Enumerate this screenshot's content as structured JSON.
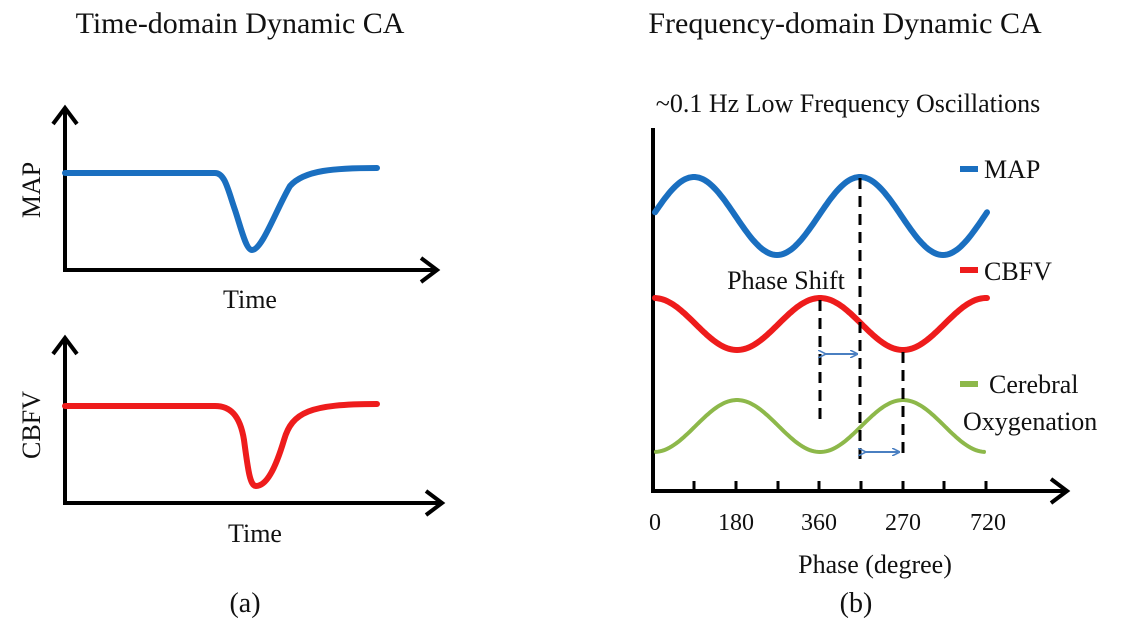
{
  "panel_a": {
    "title": "Time-domain  Dynamic  CA",
    "top_plot": {
      "ylabel": "MAP",
      "xlabel": "Time",
      "color": "#1a6fc0"
    },
    "bottom_plot": {
      "ylabel": "CBFV",
      "xlabel": "Time",
      "color": "#ee1c1c"
    },
    "caption": "(a)"
  },
  "panel_b": {
    "title": "Frequency-domain  Dynamic  CA",
    "subtitle": "~0.1 Hz Low Frequency Oscillations",
    "legend": [
      {
        "label": "MAP",
        "color": "#1a6fc0"
      },
      {
        "label": "CBFV",
        "color": "#ee1c1c"
      },
      {
        "label_line1": "Cerebral",
        "label_line2": "Oxygenation",
        "color": "#8db84a"
      }
    ],
    "annotation": "Phase Shift",
    "tick_labels": [
      "0",
      "180",
      "360",
      "270",
      "720"
    ],
    "xlabel": "Phase (degree)",
    "caption": "(b)"
  }
}
